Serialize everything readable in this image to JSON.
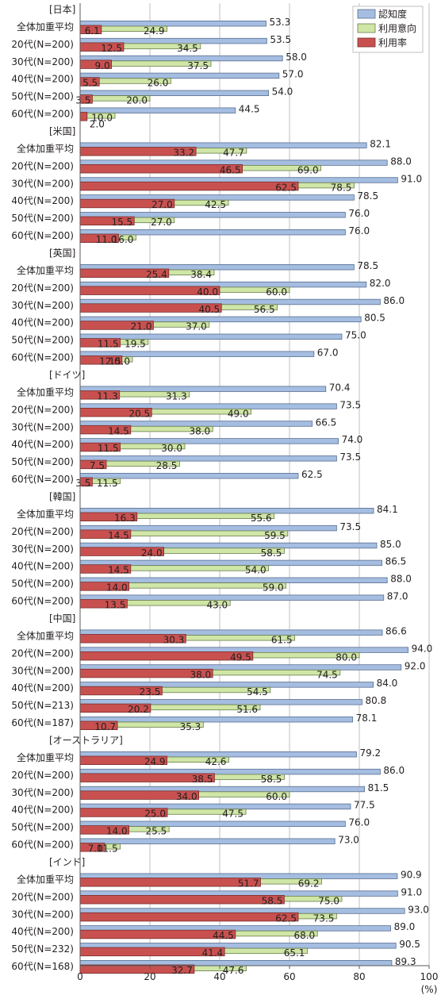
{
  "chart_data": {
    "type": "bar",
    "orientation": "horizontal",
    "xlim": [
      0,
      100
    ],
    "xticks": [
      0,
      20,
      40,
      60,
      80,
      100
    ],
    "xlabel": "(%)",
    "grid": true,
    "legend_position": "top-right",
    "series": [
      {
        "name": "認知度",
        "color": "#a4bde0"
      },
      {
        "name": "利用意向",
        "color": "#cfe6a7"
      },
      {
        "name": "利用率",
        "color": "#c85150"
      }
    ],
    "groups": [
      {
        "label": "[日本]",
        "rows": [
          {
            "label": "全体加重平均",
            "values": [
              53.3,
              24.9,
              6.1
            ]
          },
          {
            "label": "20代(N=200)",
            "values": [
              53.5,
              34.5,
              12.5
            ]
          },
          {
            "label": "30代(N=200)",
            "values": [
              58.0,
              37.5,
              9.0
            ]
          },
          {
            "label": "40代(N=200)",
            "values": [
              57.0,
              26.0,
              5.5
            ]
          },
          {
            "label": "50代(N=200)",
            "values": [
              54.0,
              20.0,
              3.5
            ]
          },
          {
            "label": "60代(N=200)",
            "values": [
              44.5,
              10.0,
              2.0
            ]
          }
        ]
      },
      {
        "label": "[米国]",
        "rows": [
          {
            "label": "全体加重平均",
            "values": [
              82.1,
              47.7,
              33.2
            ]
          },
          {
            "label": "20代(N=200)",
            "values": [
              88.0,
              69.0,
              46.5
            ]
          },
          {
            "label": "30代(N=200)",
            "values": [
              91.0,
              78.5,
              62.5
            ]
          },
          {
            "label": "40代(N=200)",
            "values": [
              78.5,
              42.5,
              27.0
            ]
          },
          {
            "label": "50代(N=200)",
            "values": [
              76.0,
              27.0,
              15.5
            ]
          },
          {
            "label": "60代(N=200)",
            "values": [
              76.0,
              16.0,
              11.0
            ]
          }
        ]
      },
      {
        "label": "[英国]",
        "rows": [
          {
            "label": "全体加重平均",
            "values": [
              78.5,
              38.4,
              25.4
            ]
          },
          {
            "label": "20代(N=200)",
            "values": [
              82.0,
              60.0,
              40.0
            ]
          },
          {
            "label": "30代(N=200)",
            "values": [
              86.0,
              56.5,
              40.5
            ]
          },
          {
            "label": "40代(N=200)",
            "values": [
              80.5,
              37.0,
              21.0
            ]
          },
          {
            "label": "50代(N=200)",
            "values": [
              75.0,
              19.5,
              11.5
            ]
          },
          {
            "label": "60代(N=200)",
            "values": [
              67.0,
              15.0,
              12.0
            ]
          }
        ]
      },
      {
        "label": "[ドイツ]",
        "rows": [
          {
            "label": "全体加重平均",
            "values": [
              70.4,
              31.3,
              11.3
            ]
          },
          {
            "label": "20代(N=200)",
            "values": [
              73.5,
              49.0,
              20.5
            ]
          },
          {
            "label": "30代(N=200)",
            "values": [
              66.5,
              38.0,
              14.5
            ]
          },
          {
            "label": "40代(N=200)",
            "values": [
              74.0,
              30.0,
              11.5
            ]
          },
          {
            "label": "50代(N=200)",
            "values": [
              73.5,
              28.5,
              7.5
            ]
          },
          {
            "label": "60代(N=200)",
            "values": [
              62.5,
              11.5,
              3.5
            ]
          }
        ]
      },
      {
        "label": "[韓国]",
        "rows": [
          {
            "label": "全体加重平均",
            "values": [
              84.1,
              55.6,
              16.3
            ]
          },
          {
            "label": "20代(N=200)",
            "values": [
              73.5,
              59.5,
              14.5
            ]
          },
          {
            "label": "30代(N=200)",
            "values": [
              85.0,
              58.5,
              24.0
            ]
          },
          {
            "label": "40代(N=200)",
            "values": [
              86.5,
              54.0,
              14.5
            ]
          },
          {
            "label": "50代(N=200)",
            "values": [
              88.0,
              59.0,
              14.0
            ]
          },
          {
            "label": "60代(N=200)",
            "values": [
              87.0,
              43.0,
              13.5
            ]
          }
        ]
      },
      {
        "label": "[中国]",
        "rows": [
          {
            "label": "全体加重平均",
            "values": [
              86.6,
              61.5,
              30.3
            ]
          },
          {
            "label": "20代(N=200)",
            "values": [
              94.0,
              80.0,
              49.5
            ]
          },
          {
            "label": "30代(N=200)",
            "values": [
              92.0,
              74.5,
              38.0
            ]
          },
          {
            "label": "40代(N=200)",
            "values": [
              84.0,
              54.5,
              23.5
            ]
          },
          {
            "label": "50代(N=213)",
            "values": [
              80.8,
              51.6,
              20.2
            ]
          },
          {
            "label": "60代(N=187)",
            "values": [
              78.1,
              35.3,
              10.7
            ]
          }
        ]
      },
      {
        "label": "[オーストラリア]",
        "rows": [
          {
            "label": "全体加重平均",
            "values": [
              79.2,
              42.6,
              24.9
            ]
          },
          {
            "label": "20代(N=200)",
            "values": [
              86.0,
              58.5,
              38.5
            ]
          },
          {
            "label": "30代(N=200)",
            "values": [
              81.5,
              60.0,
              34.0
            ]
          },
          {
            "label": "40代(N=200)",
            "values": [
              77.5,
              47.5,
              25.0
            ]
          },
          {
            "label": "50代(N=200)",
            "values": [
              76.0,
              25.5,
              14.0
            ]
          },
          {
            "label": "60代(N=200)",
            "values": [
              73.0,
              11.5,
              7.0
            ]
          }
        ]
      },
      {
        "label": "[インド]",
        "rows": [
          {
            "label": "全体加重平均",
            "values": [
              90.9,
              69.2,
              51.7
            ]
          },
          {
            "label": "20代(N=200)",
            "values": [
              91.0,
              75.0,
              58.5
            ]
          },
          {
            "label": "30代(N=200)",
            "values": [
              93.0,
              73.5,
              62.5
            ]
          },
          {
            "label": "40代(N=200)",
            "values": [
              89.0,
              68.0,
              44.5
            ]
          },
          {
            "label": "50代(N=232)",
            "values": [
              90.5,
              65.1,
              41.4
            ]
          },
          {
            "label": "60代(N=168)",
            "values": [
              89.3,
              47.6,
              32.7
            ]
          }
        ]
      }
    ]
  }
}
